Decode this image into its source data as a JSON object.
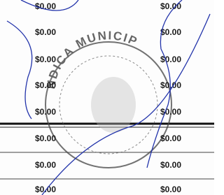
{
  "rows": [
    [
      "$0.00",
      "$0.00"
    ],
    [
      "$0.00",
      "$0.00"
    ],
    [
      "$0.00",
      "$0.00"
    ],
    [
      "$0.00",
      "$0.00"
    ],
    [
      "$0.00",
      "$0.00"
    ],
    [
      "$0.00",
      "$0.00"
    ],
    [
      "$0.00",
      "$0.00"
    ],
    [
      "$0.00",
      "$0.00"
    ]
  ],
  "stamp": {
    "text": "NDICA MUNICIP"
  }
}
